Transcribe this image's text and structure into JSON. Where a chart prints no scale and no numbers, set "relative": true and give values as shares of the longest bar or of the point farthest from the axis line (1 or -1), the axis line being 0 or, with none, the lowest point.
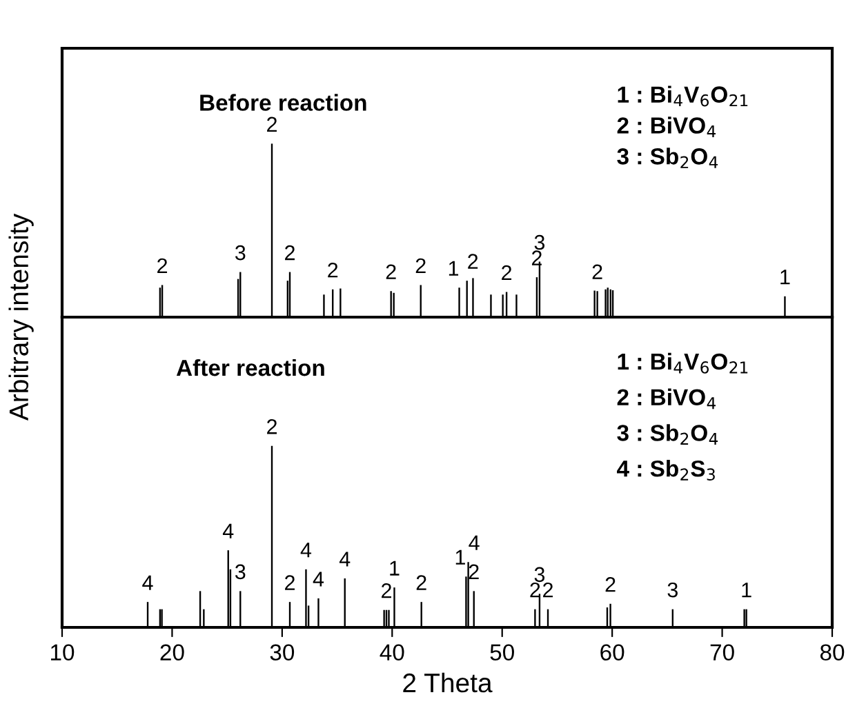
{
  "chart_data": [
    {
      "type": "bar",
      "relative": true,
      "xlim": [
        10,
        80
      ],
      "tick_labels": false,
      "grid": false,
      "legend": false,
      "color": "#000000",
      "ylabel": "Arbitrary intensity",
      "x": [
        18.9,
        19.1,
        26.0,
        26.2,
        29.07,
        30.5,
        30.7,
        33.8,
        34.6,
        35.3,
        39.9,
        40.15,
        42.6,
        46.1,
        46.8,
        47.35,
        48.98,
        50.06,
        50.4,
        51.3,
        53.15,
        53.4,
        58.4,
        58.65,
        59.4,
        59.6,
        59.85,
        60.06,
        75.7
      ],
      "values": [
        0.17,
        0.185,
        0.22,
        0.26,
        1,
        0.21,
        0.26,
        0.13,
        0.16,
        0.165,
        0.15,
        0.14,
        0.185,
        0.17,
        0.21,
        0.225,
        0.13,
        0.13,
        0.145,
        0.13,
        0.23,
        0.32,
        0.153,
        0.15,
        0.16,
        0.17,
        0.16,
        0.155,
        0.12
      ],
      "annotations": [
        "Before reaction",
        "1 : Bi$_{4}$V$_{6}$O$_{21}$",
        "2 : BiVO$_{4}$",
        "3 : Sb$_{2}$O$_{4}$",
        {
          "text": "2",
          "x": 19.1,
          "y": 0.185
        },
        {
          "text": "3",
          "x": 26.2,
          "y": 0.26
        },
        {
          "text": "2",
          "x": 29.07,
          "y": 1
        },
        {
          "text": "2",
          "x": 30.7,
          "y": 0.26
        },
        {
          "text": "2",
          "x": 34.6,
          "y": 0.16
        },
        {
          "text": "2",
          "x": 39.9,
          "y": 0.15
        },
        {
          "text": "2",
          "x": 42.6,
          "y": 0.185
        },
        {
          "text": "1",
          "x": 46.1,
          "y": 0.17
        },
        {
          "text": "2",
          "x": 46.8,
          "y": 0.21
        },
        {
          "text": "2",
          "x": 50.4,
          "y": 0.145
        },
        {
          "text": "2",
          "x": 53.15,
          "y": 0.23
        },
        {
          "text": "3",
          "x": 53.4,
          "y": 0.32
        },
        {
          "text": "2",
          "x": 58.65,
          "y": 0.15
        },
        {
          "text": "1",
          "x": 75.7,
          "y": 0.12
        }
      ]
    },
    {
      "type": "bar",
      "relative": true,
      "xlim": [
        10,
        80
      ],
      "xticks": [
        10,
        20,
        30,
        40,
        50,
        60,
        70,
        80
      ],
      "tick_labels": "x",
      "grid": false,
      "legend": false,
      "color": "#000000",
      "xlabel": "2 Theta",
      "x": [
        17.78,
        18.9,
        19.07,
        22.55,
        22.88,
        25.1,
        25.3,
        26.2,
        29.07,
        30.7,
        32.17,
        32.4,
        33.3,
        35.7,
        39.27,
        39.48,
        39.7,
        40.2,
        42.66,
        46.72,
        46.92,
        47.43,
        52.99,
        53.4,
        54.16,
        59.55,
        59.84,
        65.5,
        72.01,
        72.2
      ],
      "values": [
        0.14,
        0.1,
        0.1,
        0.2,
        0.1,
        0.425,
        0.32,
        0.2,
        1,
        0.14,
        0.32,
        0.12,
        0.16,
        0.27,
        0.096,
        0.096,
        0.096,
        0.22,
        0.14,
        0.28,
        0.36,
        0.2,
        0.1,
        0.185,
        0.1,
        0.11,
        0.13,
        0.1,
        0.1,
        0.1
      ],
      "annotations": [
        "After reaction",
        "1 : Bi$_{4}$V$_{6}$O$_{21}$",
        "2 : BiVO$_{4}$",
        "3 : Sb$_{2}$O$_{4}$",
        "4 : Sb$_{2}$S$_{3}$",
        {
          "text": "4",
          "x": 17.78,
          "y": 0.14
        },
        {
          "text": "4",
          "x": 25.1,
          "y": 0.425
        },
        {
          "text": "3",
          "x": 26.2,
          "y": 0.2
        },
        {
          "text": "2",
          "x": 29.07,
          "y": 1
        },
        {
          "text": "2",
          "x": 30.7,
          "y": 0.14
        },
        {
          "text": "4",
          "x": 32.17,
          "y": 0.32
        },
        {
          "text": "4",
          "x": 33.3,
          "y": 0.16
        },
        {
          "text": "4",
          "x": 35.7,
          "y": 0.27
        },
        {
          "text": "2",
          "x": 39.48,
          "y": 0.096
        },
        {
          "text": "1",
          "x": 40.2,
          "y": 0.22
        },
        {
          "text": "2",
          "x": 42.66,
          "y": 0.14
        },
        {
          "text": "1",
          "x": 46.72,
          "y": 0.28
        },
        {
          "text": "4",
          "x": 46.92,
          "y": 0.36
        },
        {
          "text": "2",
          "x": 47.43,
          "y": 0.2
        },
        {
          "text": "2",
          "x": 52.99,
          "y": 0.1
        },
        {
          "text": "3",
          "x": 53.4,
          "y": 0.185
        },
        {
          "text": "2",
          "x": 54.16,
          "y": 0.1
        },
        {
          "text": "2",
          "x": 59.84,
          "y": 0.13
        },
        {
          "text": "3",
          "x": 65.5,
          "y": 0.1
        },
        {
          "text": "1",
          "x": 72.2,
          "y": 0.1
        }
      ]
    }
  ]
}
